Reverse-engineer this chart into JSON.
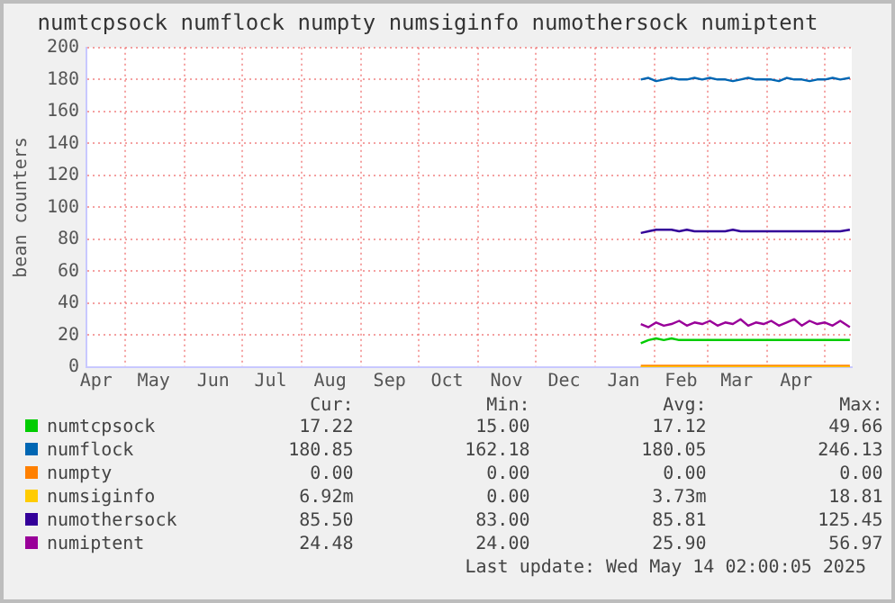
{
  "chart_data": {
    "type": "line",
    "title": "numtcpsock numflock numpty numsiginfo numothersock numiptent",
    "ylabel": "bean counters",
    "x": [
      "2025-01-25",
      "2025-01-29",
      "2025-02-02",
      "2025-02-06",
      "2025-02-10",
      "2025-02-14",
      "2025-02-18",
      "2025-02-22",
      "2025-02-26",
      "2025-03-02",
      "2025-03-06",
      "2025-03-10",
      "2025-03-14",
      "2025-03-18",
      "2025-03-22",
      "2025-03-26",
      "2025-03-30",
      "2025-04-03",
      "2025-04-07",
      "2025-04-11",
      "2025-04-15",
      "2025-04-19",
      "2025-04-23",
      "2025-04-27",
      "2025-05-01",
      "2025-05-05",
      "2025-05-09",
      "2025-05-14"
    ],
    "series": [
      {
        "name": "numtcpsock",
        "color": "#00cc00",
        "values": [
          15,
          17,
          18,
          17,
          18,
          17,
          17,
          17,
          17,
          17,
          17,
          17,
          17,
          17,
          17,
          17,
          17,
          17,
          17,
          17,
          17,
          17,
          17,
          17,
          17,
          17,
          17,
          17
        ]
      },
      {
        "name": "numflock",
        "color": "#0066b3",
        "values": [
          180,
          181,
          179,
          180,
          181,
          180,
          180,
          181,
          180,
          181,
          180,
          180,
          179,
          180,
          181,
          180,
          180,
          180,
          179,
          181,
          180,
          180,
          179,
          180,
          180,
          181,
          180,
          181
        ]
      },
      {
        "name": "numpty",
        "color": "#ff8000",
        "values": [
          0,
          0,
          0,
          0,
          0,
          0,
          0,
          0,
          0,
          0,
          0,
          0,
          0,
          0,
          0,
          0,
          0,
          0,
          0,
          0,
          0,
          0,
          0,
          0,
          0,
          0,
          0,
          0
        ]
      },
      {
        "name": "numsiginfo",
        "color": "#ffcc00",
        "values": [
          0,
          0,
          0,
          0,
          0,
          0,
          0,
          0,
          0,
          0,
          0,
          0,
          0,
          0,
          0,
          0,
          0,
          0,
          0,
          0,
          0,
          0,
          0,
          0,
          0,
          0,
          0,
          0
        ]
      },
      {
        "name": "numothersock",
        "color": "#330099",
        "values": [
          84,
          85,
          86,
          86,
          86,
          85,
          86,
          85,
          85,
          85,
          85,
          85,
          86,
          85,
          85,
          85,
          85,
          85,
          85,
          85,
          85,
          85,
          85,
          85,
          85,
          85,
          85,
          86
        ]
      },
      {
        "name": "numiptent",
        "color": "#990099",
        "values": [
          27,
          25,
          28,
          26,
          27,
          29,
          26,
          28,
          27,
          29,
          26,
          28,
          27,
          30,
          26,
          28,
          27,
          29,
          26,
          28,
          30,
          26,
          29,
          27,
          28,
          26,
          29,
          25
        ]
      }
    ],
    "xlim": [
      "2024-04-11",
      "2025-05-15"
    ],
    "xticks": [
      {
        "value": "2024-04-16",
        "label": "Apr"
      },
      {
        "value": "2024-05-01",
        "label": null
      },
      {
        "value": "2024-05-16",
        "label": "May"
      },
      {
        "value": "2024-06-01",
        "label": null
      },
      {
        "value": "2024-06-16",
        "label": "Jun"
      },
      {
        "value": "2024-07-01",
        "label": null
      },
      {
        "value": "2024-07-16",
        "label": "Jul"
      },
      {
        "value": "2024-08-01",
        "label": null
      },
      {
        "value": "2024-08-16",
        "label": "Aug"
      },
      {
        "value": "2024-09-01",
        "label": null
      },
      {
        "value": "2024-09-16",
        "label": "Sep"
      },
      {
        "value": "2024-10-01",
        "label": null
      },
      {
        "value": "2024-10-16",
        "label": "Oct"
      },
      {
        "value": "2024-11-01",
        "label": null
      },
      {
        "value": "2024-11-16",
        "label": "Nov"
      },
      {
        "value": "2024-12-01",
        "label": null
      },
      {
        "value": "2024-12-16",
        "label": "Dec"
      },
      {
        "value": "2025-01-01",
        "label": null
      },
      {
        "value": "2025-01-16",
        "label": "Jan"
      },
      {
        "value": "2025-02-01",
        "label": null
      },
      {
        "value": "2025-02-15",
        "label": "Feb"
      },
      {
        "value": "2025-03-01",
        "label": null
      },
      {
        "value": "2025-03-16",
        "label": "Mar"
      },
      {
        "value": "2025-04-01",
        "label": null
      },
      {
        "value": "2025-04-16",
        "label": "Apr"
      },
      {
        "value": "2025-05-01",
        "label": null
      }
    ],
    "ylim": [
      0,
      200
    ],
    "yticks": [
      0,
      20,
      40,
      60,
      80,
      100,
      120,
      140,
      160,
      180,
      200
    ],
    "grid": true,
    "legend": "bottom",
    "marker": "none",
    "line_style": "solid",
    "annotations": [
      "Cur:",
      "Min:",
      "Avg:",
      "Max:",
      "17.22",
      "15.00",
      "17.12",
      "49.66",
      "180.85",
      "162.18",
      "180.05",
      "246.13",
      "0.00",
      "0.00",
      "0.00",
      "0.00",
      "6.92m",
      "0.00",
      "3.73m",
      "18.81",
      "85.50",
      "83.00",
      "85.81",
      "125.45",
      "24.48",
      "24.00",
      "25.90",
      "56.97",
      "Last update: Wed May 14 02:00:05 2025"
    ]
  }
}
